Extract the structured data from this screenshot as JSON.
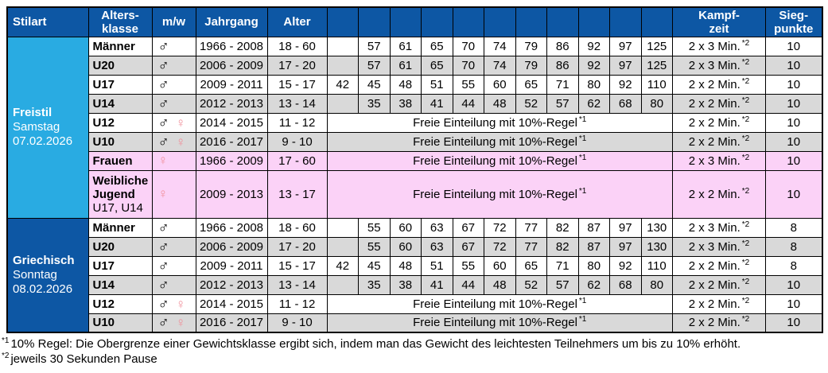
{
  "symbols": {
    "male": "♂",
    "female": "♀"
  },
  "colors": {
    "header_bg": "#0D57A4",
    "freistil_bg": "#29ABE2",
    "griechisch_bg": "#0D57A4",
    "row_alt_bg": "#D9D9D9",
    "pink_bg": "#FBD2F7",
    "female_symbol": "#F0909B",
    "border": "#000000",
    "header_text": "#FFFFFF"
  },
  "table": {
    "headers": {
      "stilart": "Stilart",
      "altersklasse_line1": "Alters-",
      "altersklasse_line2": "klasse",
      "mw": "m/w",
      "jahrgang": "Jahrgang",
      "alter": "Alter",
      "kampfzeit_line1": "Kampf-",
      "kampfzeit_line2": "zeit",
      "siegpunkte_line1": "Sieg-",
      "siegpunkte_line2": "punkte"
    },
    "free_label": "Freie Einteilung mit 10%-Regel",
    "free_sup": "*1",
    "kampfzeit_sup": "*2",
    "sections": [
      {
        "stilart": {
          "name": "Freistil",
          "day": "Samstag",
          "date": "07.02.2026"
        },
        "rows": [
          {
            "klasse": "Männer",
            "gender": "m",
            "jahrgang": "1966 - 2008",
            "alter": "18 - 60",
            "weights": [
              "",
              "57",
              "61",
              "65",
              "70",
              "74",
              "79",
              "86",
              "92",
              "97",
              "125"
            ],
            "kampfzeit": "2 x 3 Min.",
            "siegpunkte": "10",
            "bg": "white"
          },
          {
            "klasse": "U20",
            "gender": "m",
            "jahrgang": "2006 - 2009",
            "alter": "17 - 20",
            "weights": [
              "",
              "57",
              "61",
              "65",
              "70",
              "74",
              "79",
              "86",
              "92",
              "97",
              "125"
            ],
            "kampfzeit": "2 x 3 Min.",
            "siegpunkte": "10",
            "bg": "gray"
          },
          {
            "klasse": "U17",
            "gender": "m",
            "jahrgang": "2009 - 2011",
            "alter": "15 - 17",
            "weights": [
              "42",
              "45",
              "48",
              "51",
              "55",
              "60",
              "65",
              "71",
              "80",
              "92",
              "110"
            ],
            "kampfzeit": "2 x 2 Min.",
            "siegpunkte": "10",
            "bg": "white"
          },
          {
            "klasse": "U14",
            "gender": "m",
            "jahrgang": "2012 - 2013",
            "alter": "13 - 14",
            "weights": [
              "",
              "35",
              "38",
              "41",
              "44",
              "48",
              "52",
              "57",
              "62",
              "68",
              "80"
            ],
            "kampfzeit": "2 x 2 Min.",
            "siegpunkte": "10",
            "bg": "gray"
          },
          {
            "klasse": "U12",
            "gender": "mw",
            "jahrgang": "2014 - 2015",
            "alter": "11 - 12",
            "free": true,
            "kampfzeit": "2 x 2 Min.",
            "siegpunkte": "10",
            "bg": "white"
          },
          {
            "klasse": "U10",
            "gender": "mw",
            "jahrgang": "2016 - 2017",
            "alter": "9 - 10",
            "free": true,
            "kampfzeit": "2 x 2 Min.",
            "siegpunkte": "10",
            "bg": "gray"
          },
          {
            "klasse": "Frauen",
            "gender": "w",
            "jahrgang": "1966 - 2009",
            "alter": "17 - 60",
            "free": true,
            "kampfzeit": "2 x 3 Min.",
            "siegpunkte": "10",
            "bg": "pink"
          },
          {
            "klasse": "Weibliche Jugend",
            "klasse_sub": "U17, U14",
            "gender": "w",
            "jahrgang": "2009 - 2013",
            "alter": "13 - 17",
            "free": true,
            "kampfzeit": "2 x 2 Min.",
            "siegpunkte": "10",
            "bg": "pink",
            "tall": true
          }
        ]
      },
      {
        "stilart": {
          "name": "Griechisch",
          "day": "Sonntag",
          "date": "08.02.2026"
        },
        "rows": [
          {
            "klasse": "Männer",
            "gender": "m",
            "jahrgang": "1966 - 2008",
            "alter": "18 - 60",
            "weights": [
              "",
              "55",
              "60",
              "63",
              "67",
              "72",
              "77",
              "82",
              "87",
              "97",
              "130"
            ],
            "kampfzeit": "2 x 3 Min.",
            "siegpunkte": "8",
            "bg": "white"
          },
          {
            "klasse": "U20",
            "gender": "m",
            "jahrgang": "2006 - 2009",
            "alter": "17 - 20",
            "weights": [
              "",
              "55",
              "60",
              "63",
              "67",
              "72",
              "77",
              "82",
              "87",
              "97",
              "130"
            ],
            "kampfzeit": "2 x 3 Min.",
            "siegpunkte": "8",
            "bg": "gray"
          },
          {
            "klasse": "U17",
            "gender": "m",
            "jahrgang": "2009 - 2011",
            "alter": "15 - 17",
            "weights": [
              "42",
              "45",
              "48",
              "51",
              "55",
              "60",
              "65",
              "71",
              "80",
              "92",
              "110"
            ],
            "kampfzeit": "2 x 2 Min.",
            "siegpunkte": "8",
            "bg": "white"
          },
          {
            "klasse": "U14",
            "gender": "m",
            "jahrgang": "2012 - 2013",
            "alter": "13 - 14",
            "weights": [
              "",
              "35",
              "38",
              "41",
              "44",
              "48",
              "52",
              "57",
              "62",
              "68",
              "80"
            ],
            "kampfzeit": "2 x 2 Min.",
            "siegpunkte": "10",
            "bg": "gray"
          },
          {
            "klasse": "U12",
            "gender": "mw",
            "jahrgang": "2014 - 2015",
            "alter": "11 - 12",
            "free": true,
            "kampfzeit": "2 x 2 Min.",
            "siegpunkte": "10",
            "bg": "white"
          },
          {
            "klasse": "U10",
            "gender": "mw",
            "jahrgang": "2016 - 2017",
            "alter": "9 - 10",
            "free": true,
            "kampfzeit": "2 x 2 Min.",
            "siegpunkte": "10",
            "bg": "gray"
          }
        ]
      }
    ]
  },
  "footnotes": [
    {
      "sup": "*1",
      "text": "10% Regel: Die Obergrenze einer Gewichtsklasse ergibt sich, indem man das Gewicht des leichtesten Teilnehmers um bis zu 10% erhöht."
    },
    {
      "sup": "*2",
      "text": "jeweils 30 Sekunden Pause"
    }
  ]
}
